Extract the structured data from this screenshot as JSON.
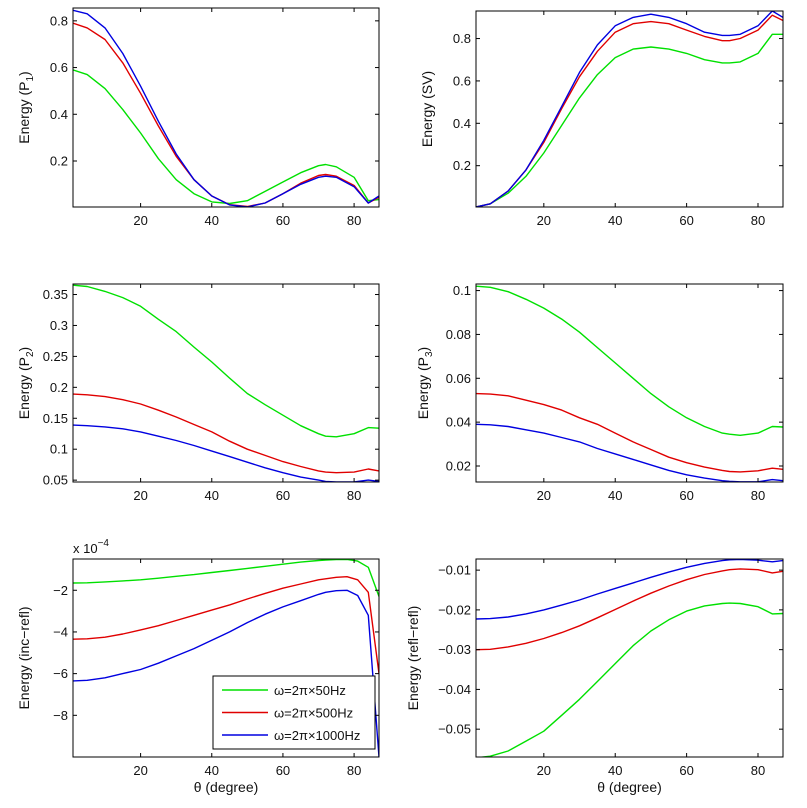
{
  "chart_data": [
    {
      "type": "line",
      "panel": "P1",
      "ylabel_main": "Energy (P",
      "ylabel_sub": "1",
      "ylabel_end": ")",
      "xlabel": "",
      "xlim": [
        1,
        87
      ],
      "ylim": [
        0.003,
        0.855
      ],
      "xticks": [
        20,
        40,
        60,
        80
      ],
      "yticks": [
        0.2,
        0.4,
        0.6,
        0.8
      ],
      "x": [
        1,
        5,
        10,
        15,
        20,
        25,
        30,
        35,
        40,
        45,
        50,
        55,
        60,
        65,
        70,
        72,
        75,
        80,
        84,
        87
      ],
      "series": [
        {
          "name": "ω=2π×50Hz",
          "color": "#00e000",
          "values": [
            0.59,
            0.57,
            0.51,
            0.42,
            0.32,
            0.21,
            0.12,
            0.06,
            0.025,
            0.018,
            0.03,
            0.07,
            0.11,
            0.15,
            0.18,
            0.185,
            0.175,
            0.13,
            0.03,
            0.035
          ]
        },
        {
          "name": "ω=2π×500Hz",
          "color": "#e00000",
          "values": [
            0.79,
            0.77,
            0.72,
            0.62,
            0.49,
            0.35,
            0.22,
            0.12,
            0.05,
            0.013,
            0.005,
            0.02,
            0.06,
            0.105,
            0.138,
            0.142,
            0.135,
            0.095,
            0.02,
            0.045
          ]
        },
        {
          "name": "ω=2π×1000Hz",
          "color": "#0000e0",
          "values": [
            0.845,
            0.83,
            0.77,
            0.66,
            0.52,
            0.37,
            0.23,
            0.12,
            0.05,
            0.012,
            0.003,
            0.02,
            0.06,
            0.1,
            0.13,
            0.135,
            0.13,
            0.09,
            0.02,
            0.05
          ]
        }
      ]
    },
    {
      "type": "line",
      "panel": "SV",
      "ylabel_main": "Energy (SV)",
      "ylabel_sub": "",
      "ylabel_end": "",
      "xlabel": "",
      "xlim": [
        1,
        87
      ],
      "ylim": [
        0.005,
        0.93
      ],
      "xticks": [
        20,
        40,
        60,
        80
      ],
      "yticks": [
        0.2,
        0.4,
        0.6,
        0.8
      ],
      "x": [
        1,
        5,
        10,
        15,
        20,
        25,
        30,
        35,
        40,
        45,
        50,
        55,
        60,
        65,
        70,
        72,
        75,
        80,
        84,
        87
      ],
      "series": [
        {
          "name": "ω=2π×50Hz",
          "color": "#00e000",
          "values": [
            0.005,
            0.02,
            0.07,
            0.15,
            0.26,
            0.39,
            0.52,
            0.63,
            0.71,
            0.75,
            0.76,
            0.75,
            0.73,
            0.7,
            0.685,
            0.685,
            0.69,
            0.73,
            0.82,
            0.82
          ]
        },
        {
          "name": "ω=2π×500Hz",
          "color": "#e00000",
          "values": [
            0.005,
            0.02,
            0.08,
            0.18,
            0.31,
            0.47,
            0.62,
            0.74,
            0.83,
            0.87,
            0.88,
            0.87,
            0.84,
            0.81,
            0.79,
            0.79,
            0.8,
            0.84,
            0.91,
            0.885
          ]
        },
        {
          "name": "ω=2π×1000Hz",
          "color": "#0000e0",
          "values": [
            0.005,
            0.02,
            0.08,
            0.18,
            0.32,
            0.48,
            0.64,
            0.77,
            0.86,
            0.9,
            0.915,
            0.9,
            0.87,
            0.83,
            0.815,
            0.815,
            0.82,
            0.86,
            0.93,
            0.9
          ]
        }
      ]
    },
    {
      "type": "line",
      "panel": "P2",
      "ylabel_main": "Energy (P",
      "ylabel_sub": "2",
      "ylabel_end": ")",
      "xlabel": "",
      "xlim": [
        1,
        87
      ],
      "ylim": [
        0.047,
        0.367
      ],
      "xticks": [
        20,
        40,
        60,
        80
      ],
      "yticks": [
        0.05,
        0.1,
        0.15,
        0.2,
        0.25,
        0.3,
        0.35
      ],
      "x": [
        1,
        5,
        10,
        15,
        20,
        25,
        30,
        35,
        40,
        45,
        50,
        55,
        60,
        65,
        70,
        72,
        75,
        80,
        84,
        87
      ],
      "series": [
        {
          "name": "ω=2π×50Hz",
          "color": "#00e000",
          "values": [
            0.365,
            0.363,
            0.355,
            0.345,
            0.331,
            0.31,
            0.29,
            0.265,
            0.241,
            0.215,
            0.19,
            0.172,
            0.155,
            0.138,
            0.125,
            0.121,
            0.12,
            0.125,
            0.135,
            0.134
          ]
        },
        {
          "name": "ω=2π×500Hz",
          "color": "#e00000",
          "values": [
            0.189,
            0.188,
            0.185,
            0.18,
            0.173,
            0.163,
            0.152,
            0.14,
            0.128,
            0.113,
            0.1,
            0.09,
            0.08,
            0.072,
            0.065,
            0.063,
            0.062,
            0.063,
            0.068,
            0.065
          ]
        },
        {
          "name": "ω=2π×1000Hz",
          "color": "#0000e0",
          "values": [
            0.139,
            0.138,
            0.136,
            0.133,
            0.128,
            0.121,
            0.114,
            0.106,
            0.097,
            0.088,
            0.079,
            0.07,
            0.062,
            0.055,
            0.05,
            0.048,
            0.047,
            0.047,
            0.05,
            0.048
          ]
        }
      ]
    },
    {
      "type": "line",
      "panel": "P3",
      "ylabel_main": "Energy (P",
      "ylabel_sub": "3",
      "ylabel_end": ")",
      "xlabel": "",
      "xlim": [
        1,
        87
      ],
      "ylim": [
        0.0127,
        0.103
      ],
      "xticks": [
        20,
        40,
        60,
        80
      ],
      "yticks": [
        0.02,
        0.04,
        0.06,
        0.08,
        0.1
      ],
      "x": [
        1,
        5,
        10,
        15,
        20,
        25,
        30,
        35,
        40,
        45,
        50,
        55,
        60,
        65,
        70,
        72,
        75,
        80,
        84,
        87
      ],
      "series": [
        {
          "name": "ω=2π×50Hz",
          "color": "#00e000",
          "values": [
            0.102,
            0.1015,
            0.0995,
            0.096,
            0.092,
            0.087,
            0.081,
            0.074,
            0.067,
            0.06,
            0.053,
            0.047,
            0.042,
            0.038,
            0.035,
            0.0345,
            0.034,
            0.035,
            0.038,
            0.0378
          ]
        },
        {
          "name": "ω=2π×500Hz",
          "color": "#e00000",
          "values": [
            0.053,
            0.0528,
            0.052,
            0.05,
            0.048,
            0.0455,
            0.042,
            0.039,
            0.035,
            0.031,
            0.0275,
            0.024,
            0.0215,
            0.0195,
            0.018,
            0.0175,
            0.0173,
            0.0178,
            0.019,
            0.0185
          ]
        },
        {
          "name": "ω=2π×1000Hz",
          "color": "#0000e0",
          "values": [
            0.039,
            0.0388,
            0.038,
            0.0365,
            0.035,
            0.033,
            0.031,
            0.028,
            0.0255,
            0.023,
            0.0205,
            0.018,
            0.016,
            0.0145,
            0.0133,
            0.013,
            0.0128,
            0.0128,
            0.0138,
            0.0133
          ]
        }
      ]
    },
    {
      "type": "line",
      "panel": "inc-refl",
      "ylabel_main": "Energy (inc−refl)",
      "ylabel_sub": "",
      "ylabel_end": "",
      "xlabel": "θ (degree)",
      "xlim": [
        1,
        87
      ],
      "ylim": [
        -10,
        -0.5
      ],
      "y_multiplier_base": "x 10",
      "y_multiplier_exp": "−4",
      "xticks": [
        20,
        40,
        60,
        80
      ],
      "yticks": [
        -8,
        -6,
        -4,
        -2
      ],
      "x": [
        1,
        5,
        10,
        15,
        20,
        25,
        30,
        35,
        40,
        45,
        50,
        55,
        60,
        65,
        70,
        72,
        75,
        78,
        81,
        84,
        87
      ],
      "series": [
        {
          "name": "ω=2π×50Hz",
          "color": "#00e000",
          "values": [
            -1.65,
            -1.64,
            -1.6,
            -1.55,
            -1.5,
            -1.42,
            -1.33,
            -1.25,
            -1.15,
            -1.05,
            -0.95,
            -0.85,
            -0.75,
            -0.65,
            -0.57,
            -0.55,
            -0.53,
            -0.52,
            -0.6,
            -0.9,
            -2.3
          ]
        },
        {
          "name": "ω=2π×500Hz",
          "color": "#e00000",
          "values": [
            -4.35,
            -4.33,
            -4.25,
            -4.1,
            -3.9,
            -3.7,
            -3.45,
            -3.2,
            -2.95,
            -2.7,
            -2.42,
            -2.15,
            -1.9,
            -1.7,
            -1.5,
            -1.45,
            -1.38,
            -1.35,
            -1.5,
            -2.1,
            -6.0
          ]
        },
        {
          "name": "ω=2π×1000Hz",
          "color": "#0000e0",
          "values": [
            -6.35,
            -6.32,
            -6.2,
            -6.0,
            -5.8,
            -5.5,
            -5.15,
            -4.8,
            -4.4,
            -4.0,
            -3.55,
            -3.15,
            -2.8,
            -2.5,
            -2.2,
            -2.1,
            -2.02,
            -2.0,
            -2.25,
            -3.2,
            -10
          ]
        }
      ],
      "legend": {
        "placement": "bottom-right",
        "entries": [
          "ω=2π×50Hz",
          "ω=2π×500Hz",
          "ω=2π×1000Hz"
        ]
      }
    },
    {
      "type": "line",
      "panel": "refl-refl",
      "ylabel_main": "Energy (refl−refl)",
      "ylabel_sub": "",
      "ylabel_end": "",
      "xlabel": "θ (degree)",
      "xlim": [
        1,
        87
      ],
      "ylim": [
        -0.057,
        -0.0072
      ],
      "xticks": [
        20,
        40,
        60,
        80
      ],
      "yticks": [
        -0.05,
        -0.04,
        -0.03,
        -0.02,
        -0.01
      ],
      "x": [
        1,
        5,
        10,
        15,
        20,
        25,
        30,
        35,
        40,
        45,
        50,
        55,
        60,
        65,
        70,
        72,
        75,
        80,
        84,
        87
      ],
      "series": [
        {
          "name": "ω=2π×50Hz",
          "color": "#00e000",
          "values": [
            -0.0572,
            -0.0568,
            -0.0555,
            -0.053,
            -0.0505,
            -0.0465,
            -0.0425,
            -0.038,
            -0.0335,
            -0.029,
            -0.0253,
            -0.0225,
            -0.0203,
            -0.019,
            -0.0184,
            -0.0183,
            -0.0184,
            -0.0192,
            -0.021,
            -0.0209
          ]
        },
        {
          "name": "ω=2π×500Hz",
          "color": "#e00000",
          "values": [
            -0.03,
            -0.0299,
            -0.0293,
            -0.0284,
            -0.0272,
            -0.0257,
            -0.024,
            -0.022,
            -0.0199,
            -0.0178,
            -0.0158,
            -0.014,
            -0.0124,
            -0.0111,
            -0.0102,
            -0.0099,
            -0.0097,
            -0.0099,
            -0.0107,
            -0.0103
          ]
        },
        {
          "name": "ω=2π×1000Hz",
          "color": "#0000e0",
          "values": [
            -0.0223,
            -0.0222,
            -0.0218,
            -0.021,
            -0.02,
            -0.0188,
            -0.0175,
            -0.016,
            -0.0146,
            -0.0132,
            -0.0118,
            -0.0105,
            -0.0093,
            -0.0083,
            -0.0076,
            -0.0074,
            -0.0073,
            -0.0075,
            -0.0079,
            -0.0076
          ]
        }
      ]
    }
  ]
}
